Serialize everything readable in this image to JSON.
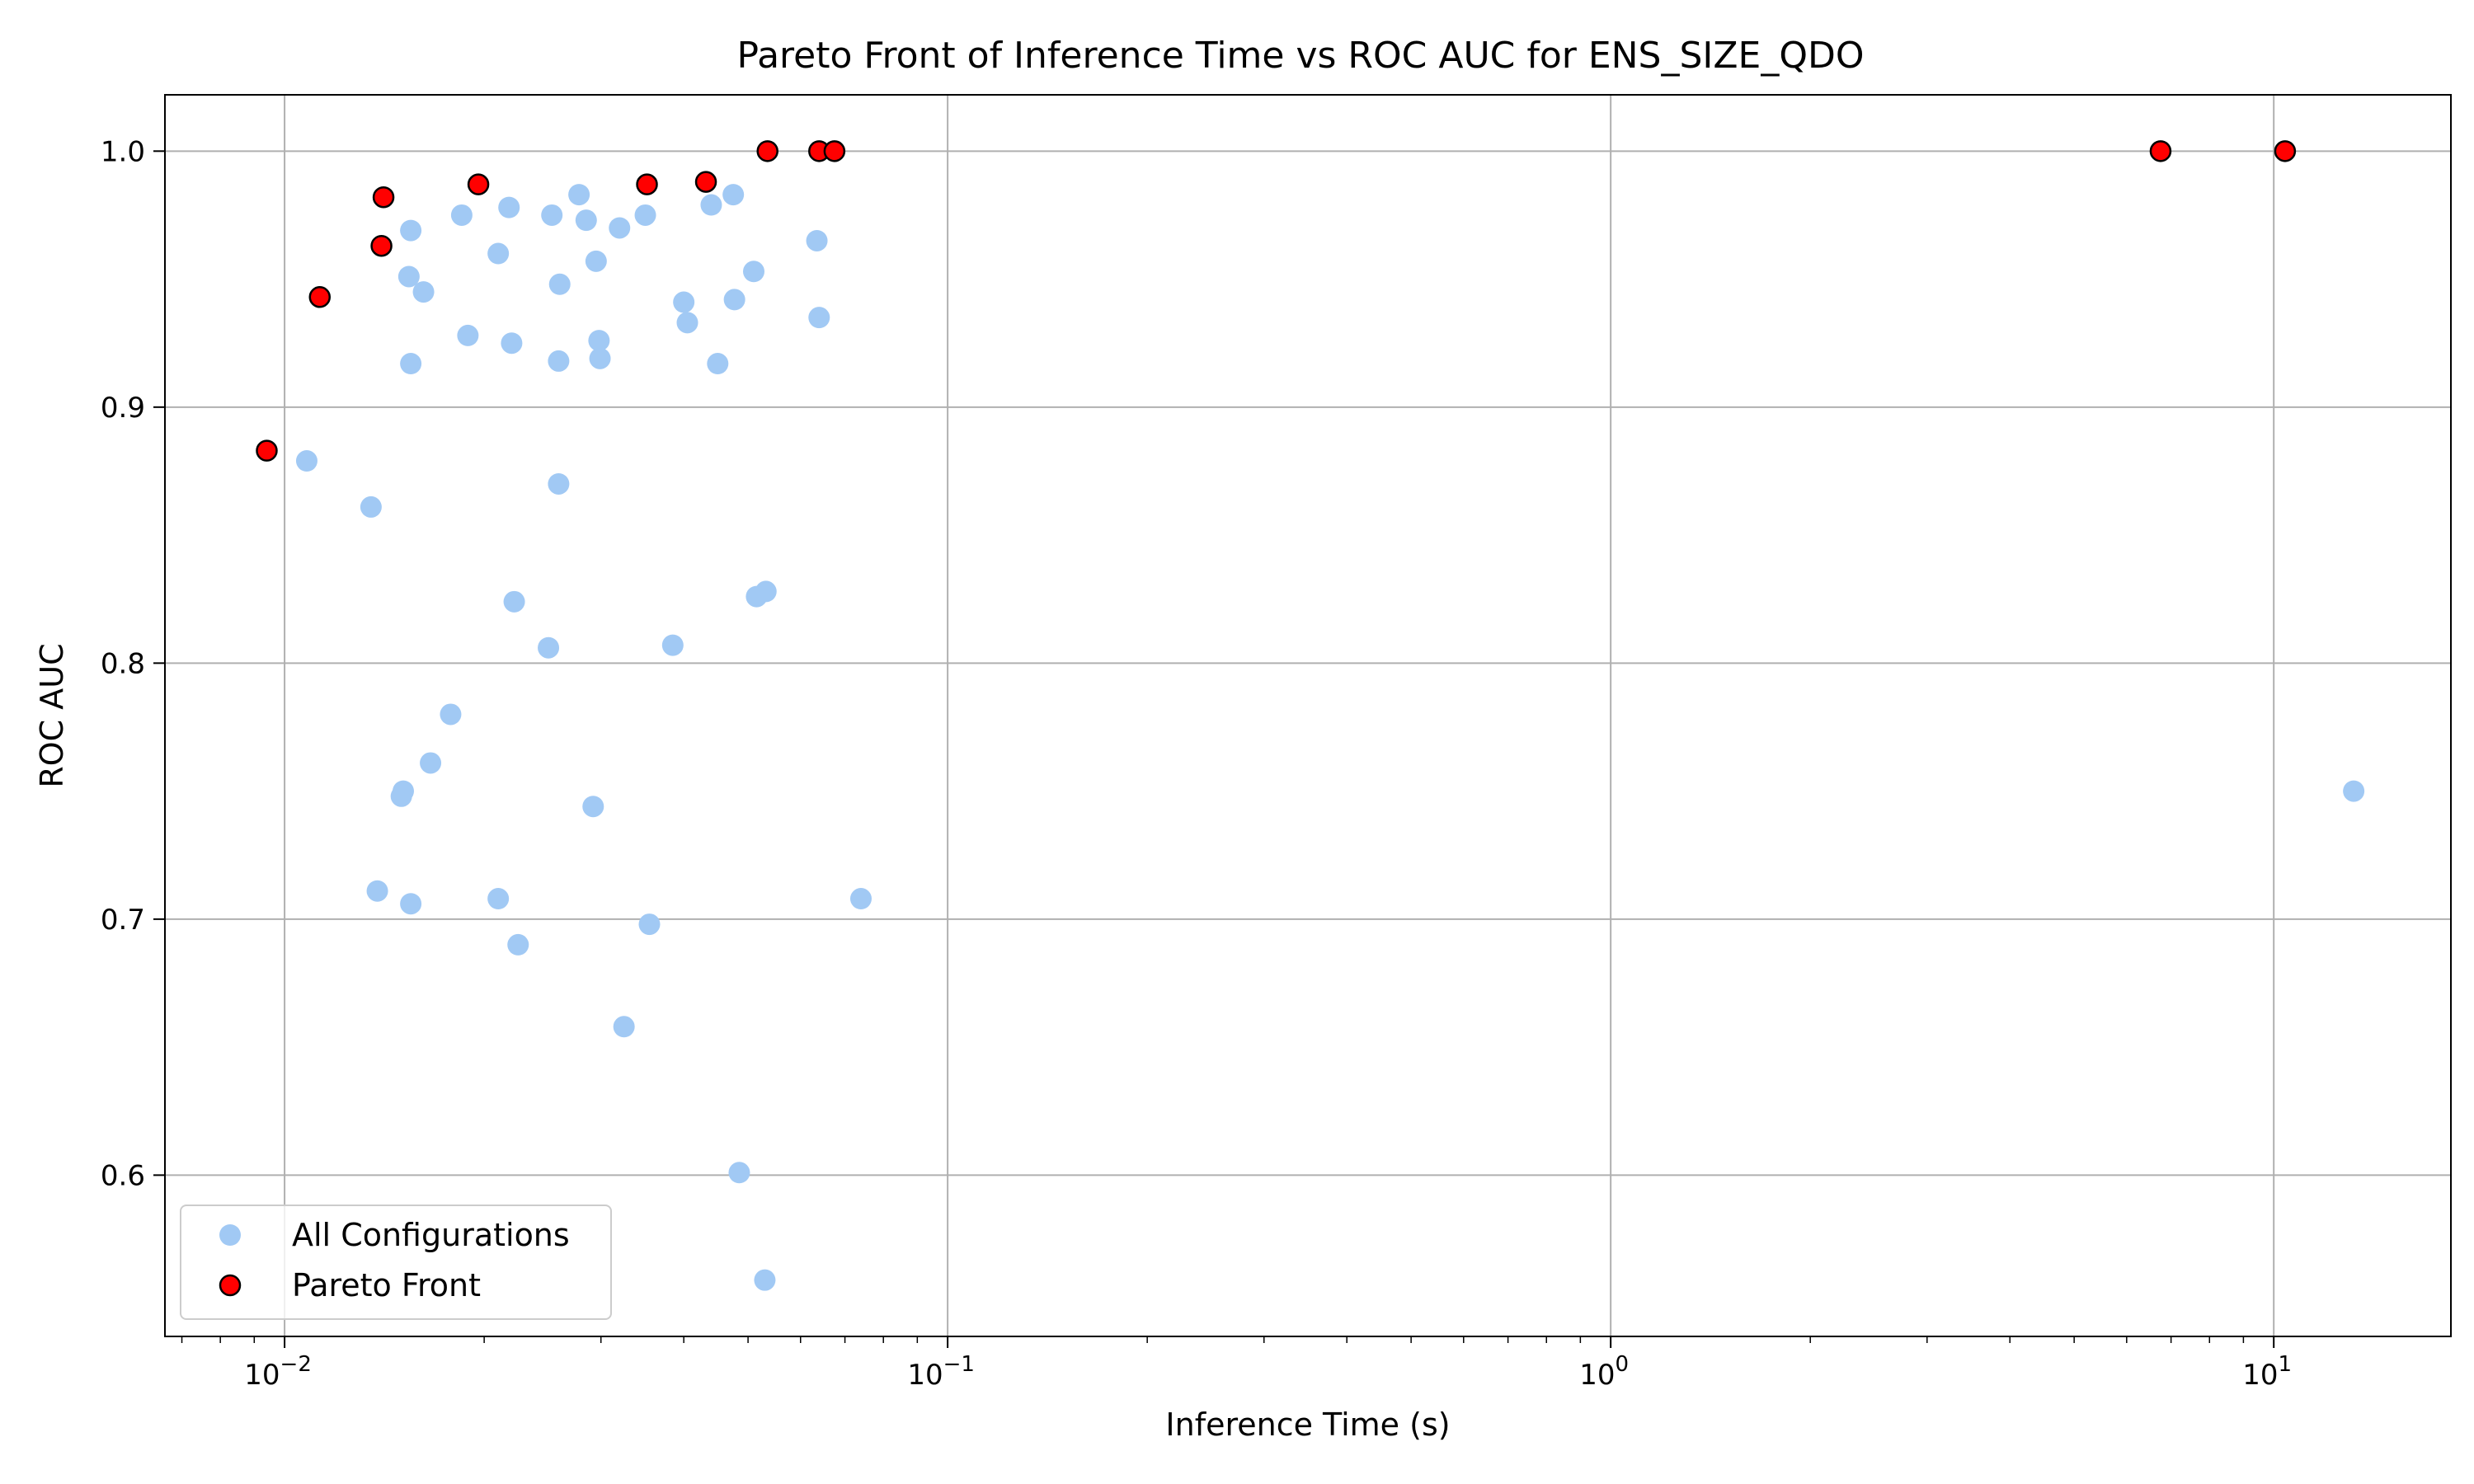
{
  "chart_data": {
    "type": "scatter",
    "title": "Pareto Front of Inference Time vs ROC AUC for ENS_SIZE_QDO",
    "xlabel": "Inference Time (s)",
    "ylabel": "ROC AUC",
    "x_scale": "log",
    "xlim": [
      0.0066,
      18.5
    ],
    "ylim": [
      0.537,
      1.022
    ],
    "grid": true,
    "legend_position": "lower-left",
    "x_ticks": [
      {
        "value": 0.01,
        "base": "10",
        "exp": "−2"
      },
      {
        "value": 0.1,
        "base": "10",
        "exp": "−1"
      },
      {
        "value": 1,
        "base": "10",
        "exp": "0"
      },
      {
        "value": 10,
        "base": "10",
        "exp": "1"
      }
    ],
    "y_ticks": [
      {
        "value": 0.6,
        "label": "0.6"
      },
      {
        "value": 0.7,
        "label": "0.7"
      },
      {
        "value": 0.8,
        "label": "0.8"
      },
      {
        "value": 0.9,
        "label": "0.9"
      },
      {
        "value": 1.0,
        "label": "1.0"
      }
    ],
    "series": [
      {
        "name": "All Configurations",
        "color": "#a1c9f4",
        "points": [
          [
            0.0108,
            0.879
          ],
          [
            0.0135,
            0.861
          ],
          [
            0.0138,
            0.711
          ],
          [
            0.015,
            0.748
          ],
          [
            0.0151,
            0.75
          ],
          [
            0.0154,
            0.951
          ],
          [
            0.0155,
            0.969
          ],
          [
            0.0155,
            0.917
          ],
          [
            0.0155,
            0.706
          ],
          [
            0.0162,
            0.945
          ],
          [
            0.0166,
            0.761
          ],
          [
            0.0178,
            0.78
          ],
          [
            0.0185,
            0.975
          ],
          [
            0.0189,
            0.928
          ],
          [
            0.021,
            0.96
          ],
          [
            0.021,
            0.708
          ],
          [
            0.0218,
            0.978
          ],
          [
            0.022,
            0.925
          ],
          [
            0.0222,
            0.824
          ],
          [
            0.0225,
            0.69
          ],
          [
            0.0253,
            0.975
          ],
          [
            0.025,
            0.806
          ],
          [
            0.026,
            0.948
          ],
          [
            0.0259,
            0.918
          ],
          [
            0.0259,
            0.87
          ],
          [
            0.0278,
            0.983
          ],
          [
            0.0285,
            0.973
          ],
          [
            0.0295,
            0.957
          ],
          [
            0.0292,
            0.744
          ],
          [
            0.0298,
            0.926
          ],
          [
            0.0299,
            0.919
          ],
          [
            0.032,
            0.97
          ],
          [
            0.0325,
            0.658
          ],
          [
            0.035,
            0.975
          ],
          [
            0.0355,
            0.698
          ],
          [
            0.0385,
            0.807
          ],
          [
            0.04,
            0.941
          ],
          [
            0.0405,
            0.933
          ],
          [
            0.044,
            0.979
          ],
          [
            0.045,
            0.917
          ],
          [
            0.0475,
            0.983
          ],
          [
            0.0477,
            0.942
          ],
          [
            0.0485,
            0.601
          ],
          [
            0.051,
            0.953
          ],
          [
            0.0515,
            0.826
          ],
          [
            0.0532,
            0.828
          ],
          [
            0.053,
            0.559
          ],
          [
            0.0635,
            0.965
          ],
          [
            0.064,
            0.935
          ],
          [
            0.074,
            0.708
          ],
          [
            13.2,
            0.75
          ]
        ]
      },
      {
        "name": "Pareto Front",
        "color": "#ff0000",
        "edge_color": "#000000",
        "points": [
          [
            0.0094,
            0.883
          ],
          [
            0.0113,
            0.943
          ],
          [
            0.014,
            0.963
          ],
          [
            0.0141,
            0.982
          ],
          [
            0.0196,
            0.987
          ],
          [
            0.0352,
            0.987
          ],
          [
            0.0432,
            0.988
          ],
          [
            0.0535,
            1.0
          ],
          [
            0.064,
            1.0
          ],
          [
            0.0675,
            1.0
          ],
          [
            6.75,
            1.0
          ],
          [
            10.4,
            1.0
          ]
        ]
      }
    ]
  }
}
